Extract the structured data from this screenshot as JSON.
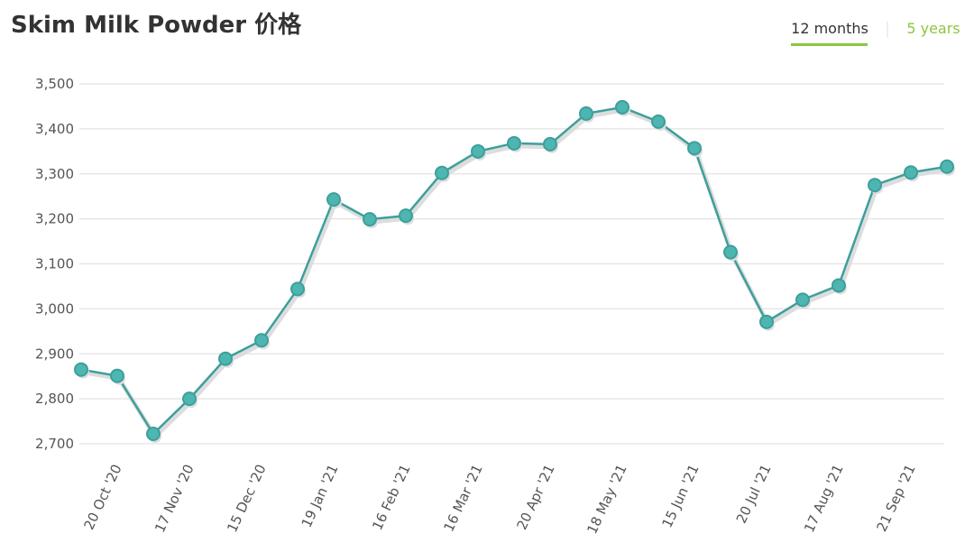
{
  "chart_data": {
    "type": "line",
    "title": "Skim Milk Powder 价格",
    "tabs": [
      "12 months",
      "5 years"
    ],
    "categories": [
      null,
      "20 Oct '20",
      null,
      "17 Nov '20",
      null,
      "15 Dec '20",
      null,
      "19 Jan '21",
      null,
      "16 Feb '21",
      null,
      "16 Mar '21",
      null,
      "20 Apr '21",
      null,
      "18 May '21",
      null,
      "15 Jun '21",
      null,
      "20 Jul '21",
      null,
      "17 Aug '21",
      null,
      "21 Sep '21",
      null
    ],
    "values": [
      2865,
      2851,
      2722,
      2800,
      2889,
      2930,
      3044,
      3243,
      3199,
      3207,
      3302,
      3350,
      3368,
      3366,
      3434,
      3448,
      3416,
      3357,
      3126,
      2971,
      3020,
      3052,
      3275,
      3303,
      3316
    ],
    "color": "#3d9f9c",
    "marker_color": "#4db6b1",
    "ylim": [
      2700,
      3500
    ],
    "yticks": [
      {
        "value": 2700,
        "label": "2,700"
      },
      {
        "value": 2800,
        "label": "2,800"
      },
      {
        "value": 2900,
        "label": "2,900"
      },
      {
        "value": 3000,
        "label": "3,000"
      },
      {
        "value": 3100,
        "label": "3,100"
      },
      {
        "value": 3200,
        "label": "3,200"
      },
      {
        "value": 3300,
        "label": "3,300"
      },
      {
        "value": 3400,
        "label": "3,400"
      },
      {
        "value": 3500,
        "label": "3,500"
      }
    ],
    "grid": true
  }
}
